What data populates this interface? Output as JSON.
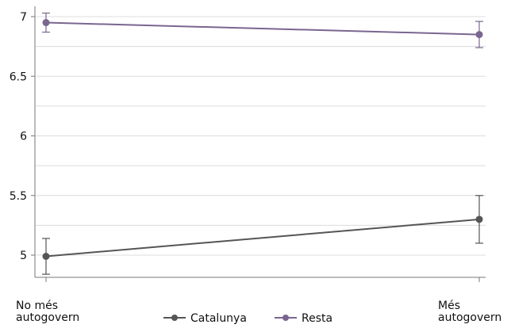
{
  "chart_data": {
    "type": "line",
    "categories": [
      "No més autogovern",
      "Més autogovern"
    ],
    "category_lines": [
      [
        "No més",
        "autogovern"
      ],
      [
        "Més",
        "autogovern"
      ]
    ],
    "series": [
      {
        "name": "Catalunya",
        "color": "#555555",
        "values": [
          4.99,
          5.3
        ],
        "ci_low": [
          4.84,
          5.1
        ],
        "ci_high": [
          5.14,
          5.5
        ]
      },
      {
        "name": "Resta",
        "color": "#7a6690",
        "values": [
          6.95,
          6.85
        ],
        "ci_low": [
          6.87,
          6.74
        ],
        "ci_high": [
          7.03,
          6.96
        ]
      }
    ],
    "yticks": [
      5,
      5.5,
      6,
      6.5,
      7
    ],
    "ytick_labels": [
      "5",
      "5.5",
      "6",
      "6.5",
      "7"
    ],
    "ylim": [
      4.83,
      7.05
    ],
    "title": "",
    "xlabel": "",
    "ylabel": "",
    "grid": true,
    "legend_position": "bottom-center"
  }
}
